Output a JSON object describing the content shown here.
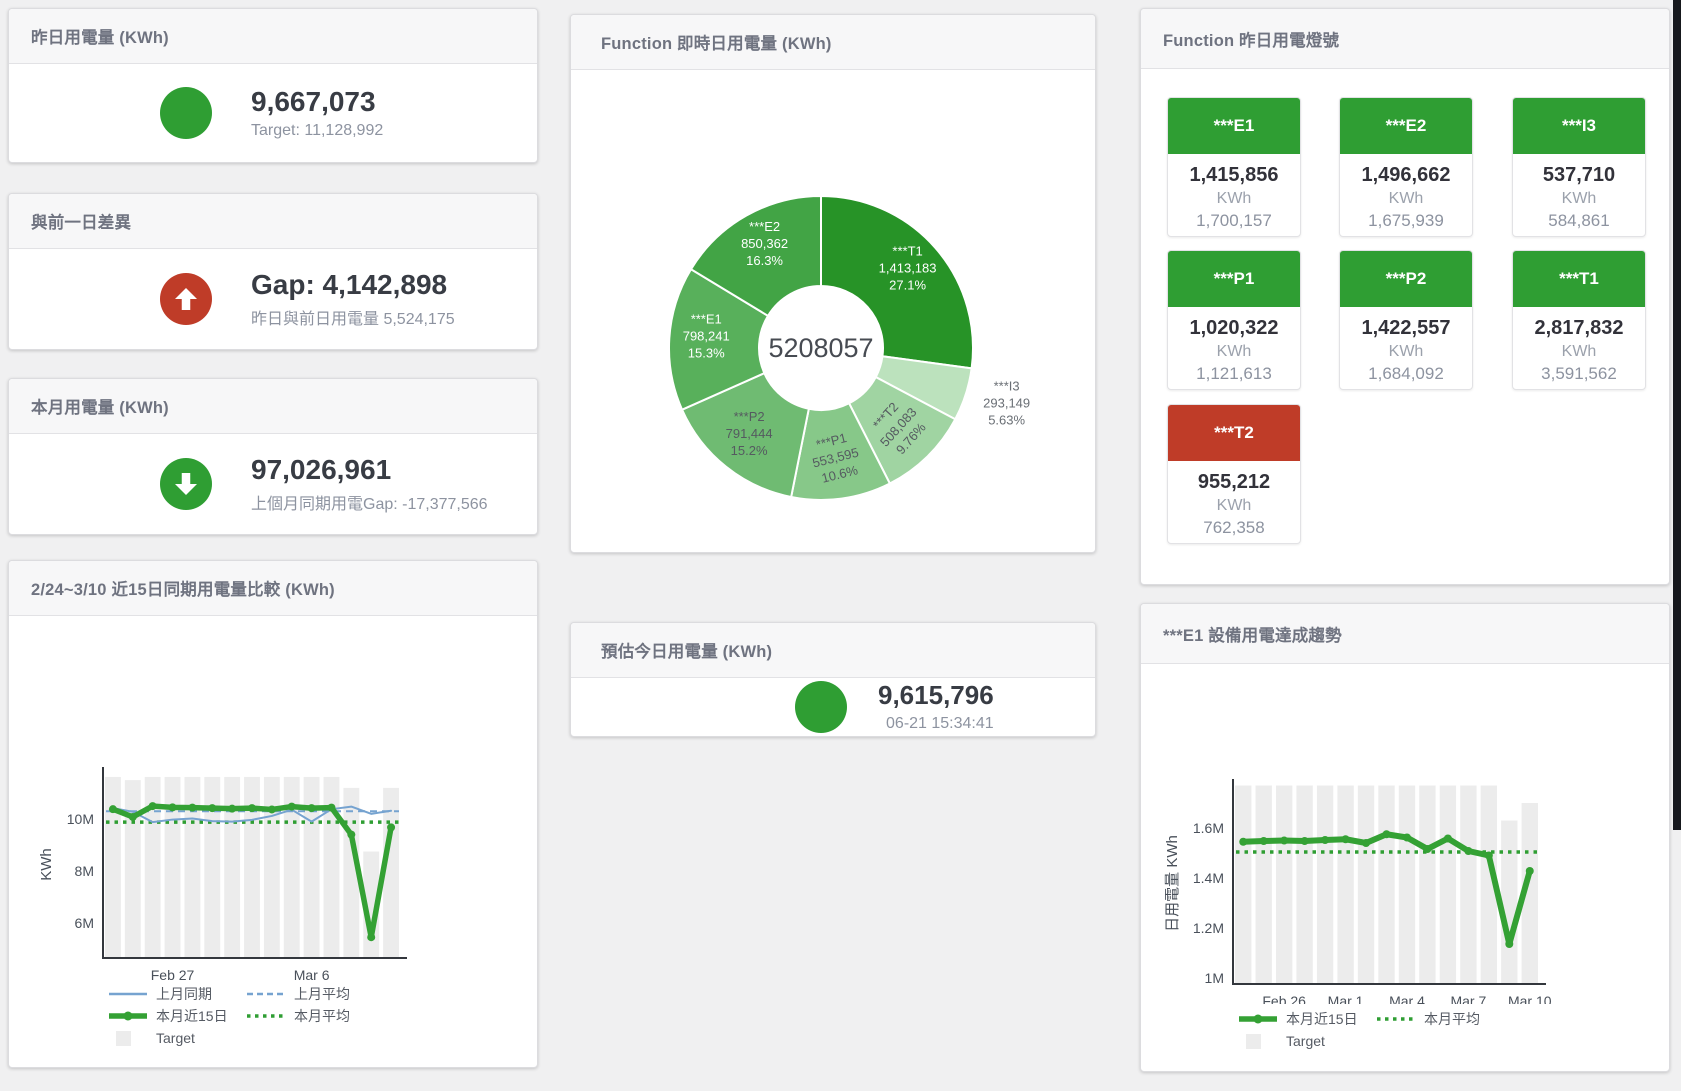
{
  "colors": {
    "green": "#2f9e33",
    "red": "#bf3c28",
    "bar_gray": "#ececec",
    "blue_line": "#76a3d0",
    "green_line": "#34a134"
  },
  "stats": {
    "yesterday": {
      "title": "昨日用電量 (KWh)",
      "value": "9,667,073",
      "subtitle": "Target: 11,128,992",
      "indicator": "circle",
      "color": "#2f9e33"
    },
    "gap": {
      "title": "與前一日差異",
      "value": "Gap: 4,142,898",
      "subtitle": "昨日與前日用電量 5,524,175",
      "indicator": "arrow-up",
      "color": "#bf3c28"
    },
    "month": {
      "title": "本月用電量 (KWh)",
      "value": "97,026,961",
      "subtitle": "上個月同期用電Gap: -17,377,566",
      "indicator": "arrow-down",
      "color": "#2f9e33"
    },
    "estimate": {
      "title": "預估今日用電量 (KWh)",
      "value": "9,615,796",
      "subtitle": "06-21 15:34:41",
      "indicator": "circle",
      "color": "#2f9e33"
    }
  },
  "lights": {
    "title": "Function 昨日用電燈號",
    "tiles": [
      {
        "name": "***E1",
        "value": "1,415,856",
        "unit": "KWh",
        "target": "1,700,157",
        "status": "ok",
        "color": "#2f9e33"
      },
      {
        "name": "***E2",
        "value": "1,496,662",
        "unit": "KWh",
        "target": "1,675,939",
        "status": "ok",
        "color": "#2f9e33"
      },
      {
        "name": "***I3",
        "value": "537,710",
        "unit": "KWh",
        "target": "584,861",
        "status": "ok",
        "color": "#2f9e33"
      },
      {
        "name": "***P1",
        "value": "1,020,322",
        "unit": "KWh",
        "target": "1,121,613",
        "status": "ok",
        "color": "#2f9e33"
      },
      {
        "name": "***P2",
        "value": "1,422,557",
        "unit": "KWh",
        "target": "1,684,092",
        "status": "ok",
        "color": "#2f9e33"
      },
      {
        "name": "***T1",
        "value": "2,817,832",
        "unit": "KWh",
        "target": "3,591,562",
        "status": "ok",
        "color": "#2f9e33"
      },
      {
        "name": "***T2",
        "value": "955,212",
        "unit": "KWh",
        "target": "762,358",
        "status": "alert",
        "color": "#bf3c28"
      }
    ]
  },
  "chart_data": [
    {
      "type": "pie",
      "title": "Function 即時日用電量 (KWh)",
      "center_label": "5208057",
      "legend_position": "none",
      "slices": [
        {
          "name": "***T1",
          "value": 1413183,
          "display": "1,413,183",
          "pct": "27.1%",
          "color": "#279327",
          "label_color": "#ffffff",
          "rotate": 0
        },
        {
          "name": "***I3",
          "value": 293149,
          "display": "293,149",
          "pct": "5.63%",
          "color": "#bce2bd",
          "label_color": "#6a6f75",
          "rotate": 0,
          "outside": true
        },
        {
          "name": "***T2",
          "value": 508083,
          "display": "508,083",
          "pct": "9.76%",
          "color": "#a0d4a2",
          "label_color": "#555a60",
          "rotate": -48
        },
        {
          "name": "***P1",
          "value": 553595,
          "display": "553,595",
          "pct": "10.6%",
          "color": "#87c889",
          "label_color": "#555a60",
          "rotate": -14
        },
        {
          "name": "***P2",
          "value": 791444,
          "display": "791,444",
          "pct": "15.2%",
          "color": "#6fbb72",
          "label_color": "#555a60",
          "rotate": 0
        },
        {
          "name": "***E1",
          "value": 798241,
          "display": "798,241",
          "pct": "15.3%",
          "color": "#58b05b",
          "label_color": "#ffffff",
          "rotate": 0
        },
        {
          "name": "***E2",
          "value": 850362,
          "display": "850,362",
          "pct": "16.3%",
          "color": "#42a445",
          "label_color": "#ffffff",
          "rotate": 0
        }
      ]
    },
    {
      "type": "line+bar",
      "title": "2/24~3/10 近15日同期用電量比較 (KWh)",
      "ylabel": "KWh",
      "unit": "M (millions KWh, estimated from gridlines)",
      "categories": [
        "Feb 24",
        "Feb 25",
        "Feb 26",
        "Feb 27",
        "Feb 28",
        "Mar 1",
        "Mar 2",
        "Mar 3",
        "Mar 4",
        "Mar 5",
        "Mar 6",
        "Mar 7",
        "Mar 8",
        "Mar 9",
        "Mar 10"
      ],
      "xticks": [
        {
          "index": 3,
          "label": "Feb 27"
        },
        {
          "index": 10,
          "label": "Mar 6"
        }
      ],
      "yticks": [
        {
          "value": 6,
          "label": "6M"
        },
        {
          "value": 8,
          "label": "8M"
        },
        {
          "value": 10,
          "label": "10M"
        }
      ],
      "ylim": [
        4.65,
        11.85
      ],
      "grid": false,
      "target_bars": {
        "name": "Target",
        "color": "#ececec",
        "values": [
          11.62,
          11.5,
          11.62,
          11.62,
          11.62,
          11.62,
          11.62,
          11.62,
          11.62,
          11.62,
          11.62,
          11.62,
          11.2,
          8.75,
          11.2
        ]
      },
      "series": [
        {
          "name": "上月同期",
          "color": "#76a3d0",
          "line_style": "solid",
          "width": 2,
          "values": [
            10.42,
            10.28,
            9.88,
            9.98,
            10.02,
            9.92,
            9.9,
            9.97,
            10.12,
            10.36,
            9.9,
            10.38,
            10.48,
            10.2,
            10.32
          ]
        },
        {
          "name": "上月平均",
          "color": "#76a3d0",
          "line_style": "dashed",
          "width": 2,
          "avg_value": 10.3
        },
        {
          "name": "本月近15日",
          "color": "#34a134",
          "line_style": "solid",
          "width": 5.5,
          "markers": true,
          "values": [
            10.38,
            10.08,
            10.5,
            10.45,
            10.44,
            10.42,
            10.4,
            10.42,
            10.37,
            10.48,
            10.42,
            10.44,
            9.4,
            5.45,
            9.68
          ]
        },
        {
          "name": "本月平均",
          "color": "#2f9e33",
          "line_style": "dotted",
          "width": 3.5,
          "avg_value": 9.88
        }
      ],
      "legend_rows": [
        [
          {
            "label": "上月同期",
            "swatch": "line",
            "color": "#76a3d0"
          },
          {
            "label": "上月平均",
            "swatch": "dashed",
            "color": "#76a3d0"
          }
        ],
        [
          {
            "label": "本月近15日",
            "swatch": "thick",
            "color": "#34a134"
          },
          {
            "label": "本月平均",
            "swatch": "dotted",
            "color": "#2f9e33"
          }
        ],
        [
          {
            "label": "Target",
            "swatch": "square",
            "color": "#ececec"
          }
        ]
      ]
    },
    {
      "type": "line+bar",
      "title": "***E1 設備用電達成趨勢",
      "ylabel": "日用電量 KWh",
      "unit": "M (millions KWh, estimated from gridlines)",
      "categories": [
        "Feb 24",
        "Feb 25",
        "Feb 26",
        "Feb 27",
        "Feb 28",
        "Mar 1",
        "Mar 2",
        "Mar 3",
        "Mar 4",
        "Mar 5",
        "Mar 6",
        "Mar 7",
        "Mar 8",
        "Mar 9",
        "Mar 10"
      ],
      "xticks": [
        {
          "index": 2,
          "label": "Feb 26"
        },
        {
          "index": 5,
          "label": "Mar 1"
        },
        {
          "index": 8,
          "label": "Mar 4"
        },
        {
          "index": 11,
          "label": "Mar 7"
        },
        {
          "index": 14,
          "label": "Mar 10"
        }
      ],
      "yticks": [
        {
          "value": 1,
          "label": "1M"
        },
        {
          "value": 1.2,
          "label": "1.2M"
        },
        {
          "value": 1.4,
          "label": "1.4M"
        },
        {
          "value": 1.6,
          "label": "1.6M"
        }
      ],
      "ylim": [
        0.976,
        1.78
      ],
      "grid": false,
      "target_bars": {
        "name": "Target",
        "color": "#ececec",
        "values": [
          1.77,
          1.77,
          1.77,
          1.77,
          1.77,
          1.77,
          1.77,
          1.77,
          1.77,
          1.77,
          1.77,
          1.77,
          1.77,
          1.63,
          1.7
        ]
      },
      "series": [
        {
          "name": "本月近15日",
          "color": "#34a134",
          "line_style": "solid",
          "width": 6,
          "markers": true,
          "values": [
            1.545,
            1.548,
            1.55,
            1.548,
            1.552,
            1.555,
            1.54,
            1.575,
            1.562,
            1.516,
            1.558,
            1.508,
            1.49,
            1.136,
            1.428
          ]
        },
        {
          "name": "本月平均",
          "color": "#2f9e33",
          "line_style": "dotted",
          "width": 3.5,
          "avg_value": 1.504
        }
      ],
      "legend_rows": [
        [
          {
            "label": "本月近15日",
            "swatch": "thick",
            "color": "#34a134"
          },
          {
            "label": "本月平均",
            "swatch": "dotted",
            "color": "#2f9e33"
          }
        ],
        [
          {
            "label": "Target",
            "swatch": "square",
            "color": "#ececec"
          }
        ]
      ]
    }
  ]
}
